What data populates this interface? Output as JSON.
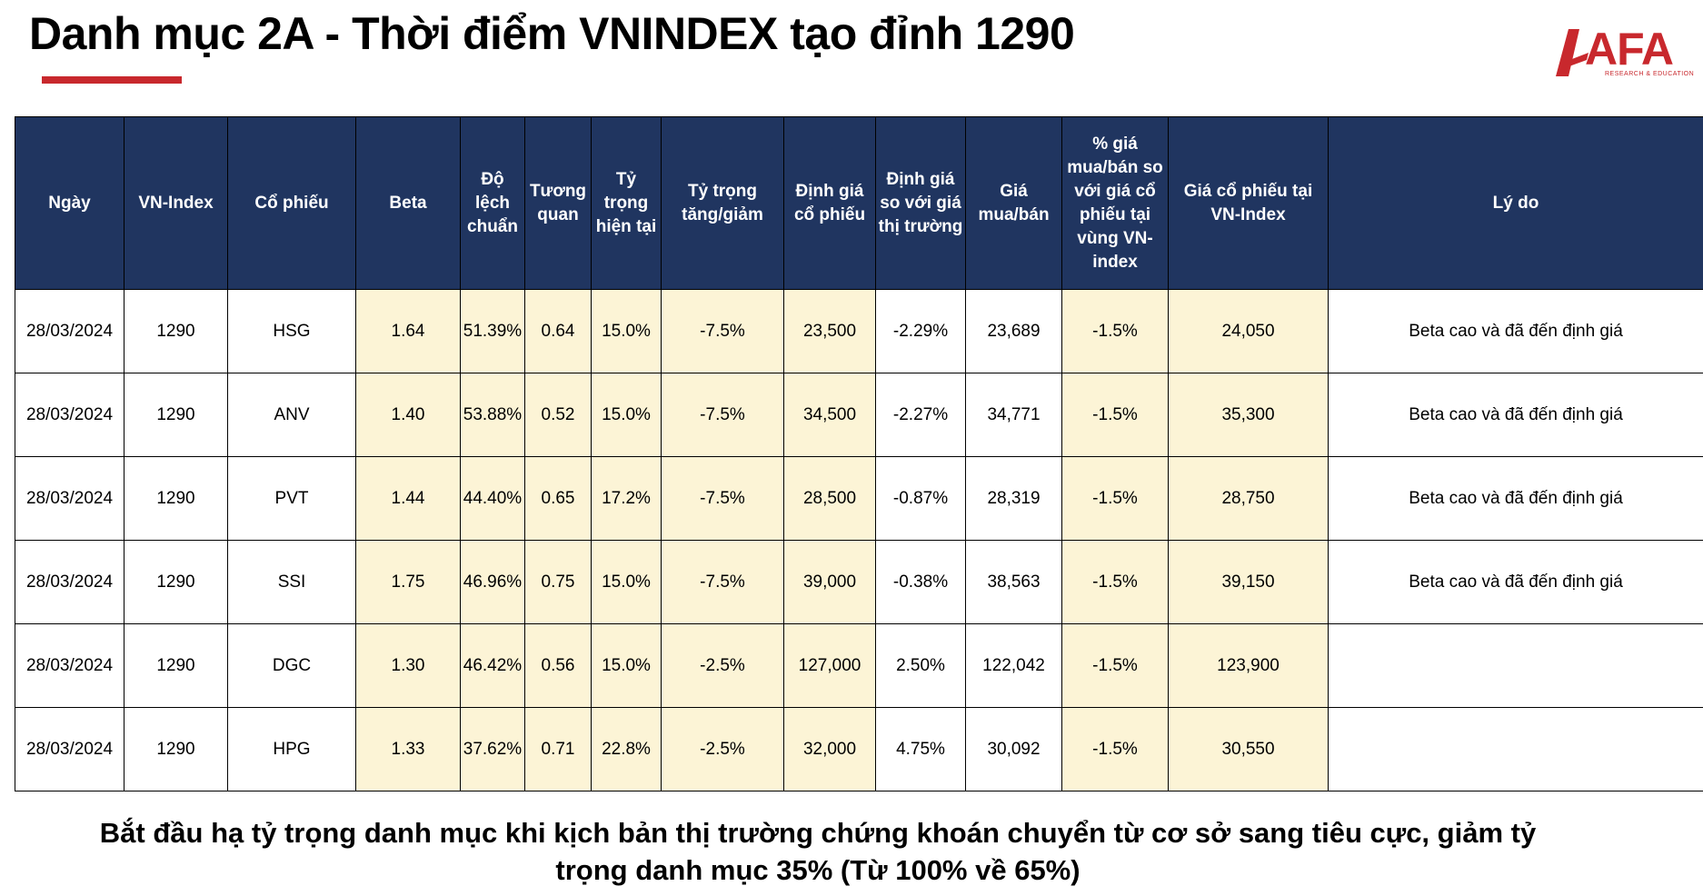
{
  "title": "Danh mục 2A - Thời điểm VNINDEX tạo đỉnh 1290",
  "logo": {
    "text": "AFA",
    "sub": "RESEARCH & EDUCATION",
    "brand_color": "#c8282d"
  },
  "colors": {
    "header_bg": "#203560",
    "highlight_bg": "#fcf4d6",
    "accent": "#c8282d"
  },
  "headers": [
    "Ngày",
    "VN-Index",
    "Cổ phiếu",
    "Beta",
    "Độ lệch chuẩn",
    "Tương quan",
    "Tỷ trọng hiện tại",
    "Tỷ trọng tăng/giảm",
    "Định giá cổ phiếu",
    "Định giá so với giá thị trường",
    "Giá mua/bán",
    "% giá mua/bán so với giá cổ phiếu tại vùng VN-index",
    "Giá cổ phiếu tại VN-Index",
    "Lý do"
  ],
  "rows": [
    [
      "28/03/2024",
      "1290",
      "HSG",
      "1.64",
      "51.39%",
      "0.64",
      "15.0%",
      "-7.5%",
      "23,500",
      "-2.29%",
      "23,689",
      "-1.5%",
      "24,050",
      "Beta cao và đã đến định giá"
    ],
    [
      "28/03/2024",
      "1290",
      "ANV",
      "1.40",
      "53.88%",
      "0.52",
      "15.0%",
      "-7.5%",
      "34,500",
      "-2.27%",
      "34,771",
      "-1.5%",
      "35,300",
      "Beta cao và đã đến định giá"
    ],
    [
      "28/03/2024",
      "1290",
      "PVT",
      "1.44",
      "44.40%",
      "0.65",
      "17.2%",
      "-7.5%",
      "28,500",
      "-0.87%",
      "28,319",
      "-1.5%",
      "28,750",
      "Beta cao và đã đến định giá"
    ],
    [
      "28/03/2024",
      "1290",
      "SSI",
      "1.75",
      "46.96%",
      "0.75",
      "15.0%",
      "-7.5%",
      "39,000",
      "-0.38%",
      "38,563",
      "-1.5%",
      "39,150",
      "Beta cao và đã đến định giá"
    ],
    [
      "28/03/2024",
      "1290",
      "DGC",
      "1.30",
      "46.42%",
      "0.56",
      "15.0%",
      "-2.5%",
      "127,000",
      "2.50%",
      "122,042",
      "-1.5%",
      "123,900",
      ""
    ],
    [
      "28/03/2024",
      "1290",
      "HPG",
      "1.33",
      "37.62%",
      "0.71",
      "22.8%",
      "-2.5%",
      "32,000",
      "4.75%",
      "30,092",
      "-1.5%",
      "30,550",
      ""
    ]
  ],
  "footer": "Bắt đầu hạ tỷ trọng danh mục khi kịch bản thị trường chứng khoán chuyển từ cơ sở sang tiêu cực, giảm tỷ trọng danh mục 35% (Từ 100% về 65%)"
}
